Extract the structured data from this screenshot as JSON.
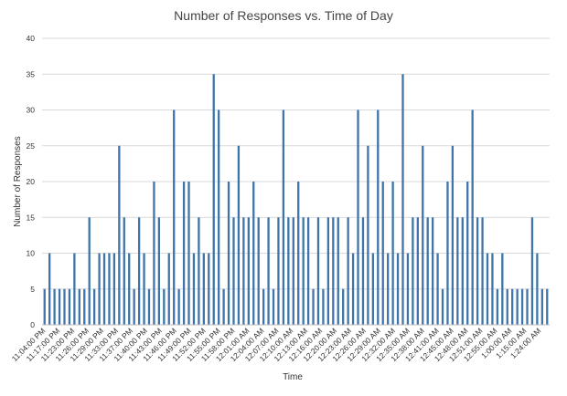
{
  "chart_data": {
    "type": "bar",
    "title": "Number of Responses vs. Time of Day",
    "xlabel": "Time",
    "ylabel": "Number of Responses",
    "ylim": [
      0,
      40
    ],
    "yticks": [
      0,
      5,
      10,
      15,
      20,
      25,
      30,
      35,
      40
    ],
    "grid": "horizontal",
    "legend": "none",
    "bar_color": "#3e74aa",
    "x_tick_labels": [
      "11:04:00 PM",
      "11:17:00 PM",
      "11:23:00 PM",
      "11:26:00 PM",
      "11:29:00 PM",
      "11:33:00 PM",
      "11:37:00 PM",
      "11:40:00 PM",
      "11:43:00 PM",
      "11:46:00 PM",
      "11:49:00 PM",
      "11:52:00 PM",
      "11:55:00 PM",
      "11:58:00 PM",
      "12:01:00 AM",
      "12:04:00 AM",
      "12:07:00 AM",
      "12:10:00 AM",
      "12:13:00 AM",
      "12:16:00 AM",
      "12:20:00 AM",
      "12:23:00 AM",
      "12:26:00 AM",
      "12:29:00 AM",
      "12:32:00 AM",
      "12:35:00 AM",
      "12:38:00 AM",
      "12:41:00 AM",
      "12:45:00 AM",
      "12:48:00 AM",
      "12:51:00 AM",
      "12:55:00 AM",
      "1:00:00 AM",
      "1:15:00 AM",
      "1:24:00 AM"
    ],
    "values": [
      5,
      10,
      5,
      5,
      5,
      5,
      10,
      5,
      5,
      15,
      5,
      10,
      10,
      10,
      10,
      25,
      15,
      10,
      5,
      15,
      10,
      5,
      20,
      15,
      5,
      10,
      30,
      5,
      20,
      20,
      10,
      15,
      10,
      10,
      35,
      30,
      5,
      20,
      15,
      25,
      15,
      15,
      20,
      15,
      5,
      15,
      5,
      15,
      30,
      15,
      15,
      20,
      15,
      15,
      5,
      15,
      5,
      15,
      15,
      15,
      5,
      15,
      10,
      30,
      15,
      25,
      10,
      30,
      20,
      10,
      20,
      10,
      35,
      10,
      15,
      15,
      25,
      15,
      15,
      10,
      5,
      20,
      25,
      15,
      15,
      20,
      30,
      15,
      15,
      10,
      10,
      5,
      10,
      5,
      5,
      5,
      5,
      5,
      15,
      10,
      5,
      5
    ]
  }
}
